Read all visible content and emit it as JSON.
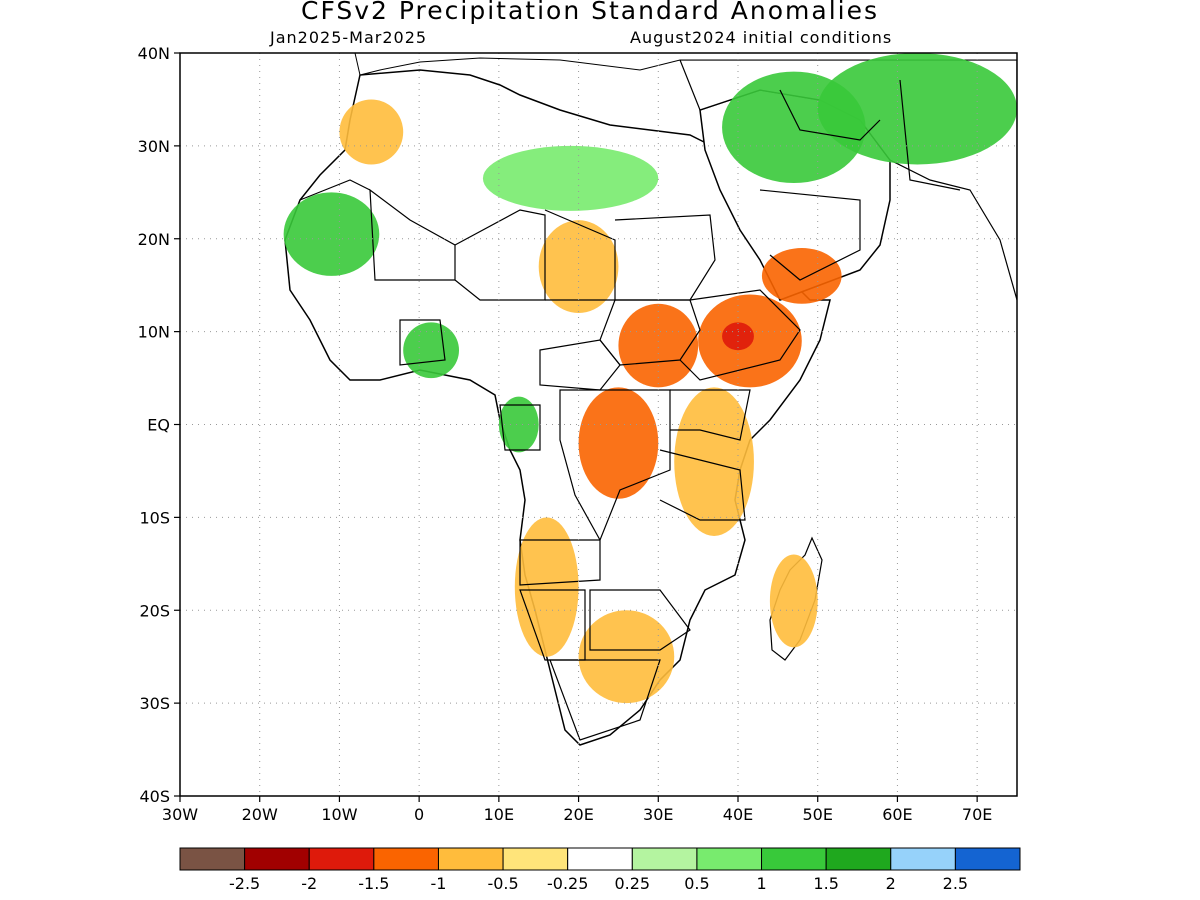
{
  "title": "CFSv2 Precipitation Standard Anomalies",
  "valid_period": "Jan2025-Mar2025",
  "initial_conditions": "August2024 initial conditions",
  "map": {
    "region": "Africa and Middle East",
    "lon_range": [
      -30,
      75
    ],
    "lat_range": [
      -40,
      40
    ],
    "grid": "dotted",
    "lat_labels": [
      {
        "value": 40,
        "label": "40N"
      },
      {
        "value": 30,
        "label": "30N"
      },
      {
        "value": 20,
        "label": "20N"
      },
      {
        "value": 10,
        "label": "10N"
      },
      {
        "value": 0,
        "label": "EQ"
      },
      {
        "value": -10,
        "label": "10S"
      },
      {
        "value": -20,
        "label": "20S"
      },
      {
        "value": -30,
        "label": "30S"
      },
      {
        "value": -40,
        "label": "40S"
      }
    ],
    "lon_labels": [
      {
        "value": -30,
        "label": "30W"
      },
      {
        "value": -20,
        "label": "20W"
      },
      {
        "value": -10,
        "label": "10W"
      },
      {
        "value": 0,
        "label": "0"
      },
      {
        "value": 10,
        "label": "10E"
      },
      {
        "value": 20,
        "label": "20E"
      },
      {
        "value": 30,
        "label": "30E"
      },
      {
        "value": 40,
        "label": "40E"
      },
      {
        "value": 50,
        "label": "50E"
      },
      {
        "value": 60,
        "label": "60E"
      },
      {
        "value": 70,
        "label": "70E"
      }
    ]
  },
  "colorbar": {
    "colors": [
      "#7a5344",
      "#a10000",
      "#de1a0b",
      "#fa6400",
      "#ffbc3c",
      "#ffe47a",
      "#ffffff",
      "#b4f4a0",
      "#78eb6e",
      "#38c93a",
      "#1fa81e",
      "#96d2fa",
      "#1464d2"
    ],
    "tick_labels": [
      "-2.5",
      "-2",
      "-1.5",
      "-1",
      "-0.5",
      "-0.25",
      "0.25",
      "0.5",
      "1",
      "1.5",
      "2",
      "2.5"
    ]
  },
  "anomaly_regions": [
    {
      "name": "Sahara/Mauritania",
      "lon": [
        -17,
        -5
      ],
      "lat": [
        16,
        25
      ],
      "level": "1.5"
    },
    {
      "name": "Central Sahara",
      "lon": [
        8,
        30
      ],
      "lat": [
        23,
        30
      ],
      "level": "1"
    },
    {
      "name": "Arabia north",
      "lon": [
        38,
        56
      ],
      "lat": [
        26,
        38
      ],
      "level": "1.5"
    },
    {
      "name": "Iran",
      "lon": [
        50,
        75
      ],
      "lat": [
        28,
        40
      ],
      "level": "1.5"
    },
    {
      "name": "Guinea coast",
      "lon": [
        -2,
        5
      ],
      "lat": [
        5,
        11
      ],
      "level": "1.5"
    },
    {
      "name": "Gabon/Congo",
      "lon": [
        10,
        15
      ],
      "lat": [
        -3,
        3
      ],
      "level": "1.5"
    },
    {
      "name": "Chad/Sudan",
      "lon": [
        15,
        25
      ],
      "lat": [
        12,
        22
      ],
      "level": "-0.5"
    },
    {
      "name": "South Sudan",
      "lon": [
        25,
        35
      ],
      "lat": [
        4,
        13
      ],
      "level": "-1"
    },
    {
      "name": "Ethiopia",
      "lon": [
        35,
        48
      ],
      "lat": [
        4,
        14
      ],
      "level": "-1"
    },
    {
      "name": "Ethiopian highlands",
      "lon": [
        38,
        42
      ],
      "lat": [
        8,
        11
      ],
      "level": "-1.5"
    },
    {
      "name": "DRC east",
      "lon": [
        20,
        30
      ],
      "lat": [
        -8,
        4
      ],
      "level": "-1"
    },
    {
      "name": "Kenya/Tanzania",
      "lon": [
        32,
        42
      ],
      "lat": [
        -12,
        4
      ],
      "level": "-0.5"
    },
    {
      "name": "Yemen",
      "lon": [
        43,
        53
      ],
      "lat": [
        13,
        19
      ],
      "level": "-1"
    },
    {
      "name": "Angola/Namibia",
      "lon": [
        12,
        20
      ],
      "lat": [
        -25,
        -10
      ],
      "level": "-0.5"
    },
    {
      "name": "South Africa",
      "lon": [
        20,
        32
      ],
      "lat": [
        -30,
        -20
      ],
      "level": "-0.5"
    },
    {
      "name": "Madagascar",
      "lon": [
        44,
        50
      ],
      "lat": [
        -24,
        -14
      ],
      "level": "-0.5"
    },
    {
      "name": "Morocco",
      "lon": [
        -10,
        -2
      ],
      "lat": [
        28,
        35
      ],
      "level": "-0.5"
    }
  ]
}
